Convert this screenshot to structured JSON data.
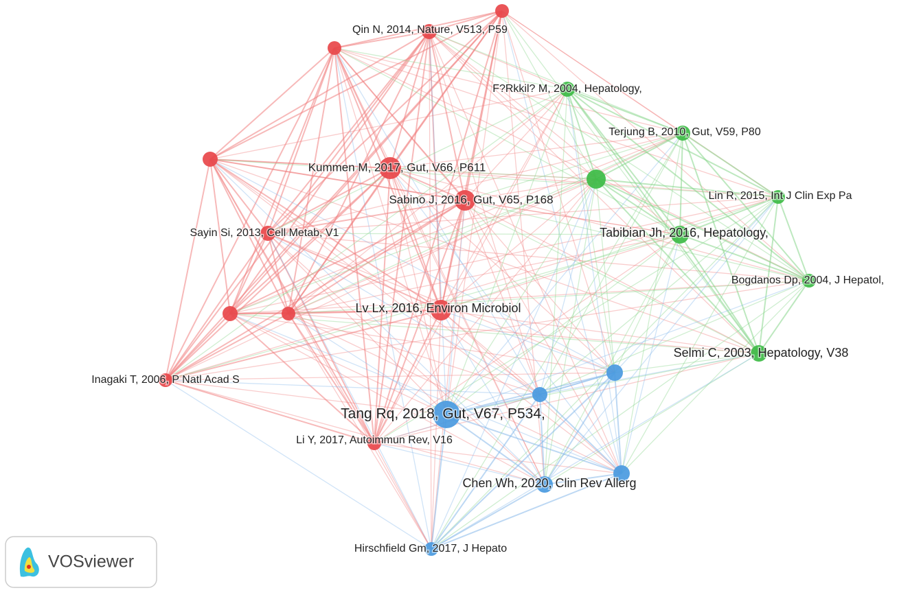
{
  "nodes": [
    {
      "label": "Qin N, 2014, Nature, V513, P59"
    },
    {
      "label": "Kummen M, 2017, Gut, V66, P611"
    },
    {
      "label": "Sabino J, 2016, Gut, V65, P168"
    },
    {
      "label": "Sayin Si, 2013, Cell Metab, V1"
    },
    {
      "label": "Lv Lx, 2016, Environ Microbiol"
    },
    {
      "label": "Inagaki T, 2006, P Natl Acad S"
    },
    {
      "label": "Li Y, 2017, Autoimmun Rev, V16"
    },
    {
      "label": "F?Rkkil? M, 2004, Hepatology,"
    },
    {
      "label": "Terjung B, 2010, Gut, V59, P80"
    },
    {
      "label": "Lin R, 2015, Int J Clin Exp Pa"
    },
    {
      "label": "Tabibian Jh, 2016, Hepatology,"
    },
    {
      "label": "Bogdanos Dp, 2004, J Hepatol,"
    },
    {
      "label": "Selmi C, 2003, Hepatology, V38"
    },
    {
      "label": "Tang Rq, 2018, Gut, V67, P534,"
    },
    {
      "label": "Chen Wh, 2020, Clin Rev Allerg"
    },
    {
      "label": "Hirschfield Gm, 2017, J Hepato"
    }
  ],
  "logo": "VOSviewer"
}
